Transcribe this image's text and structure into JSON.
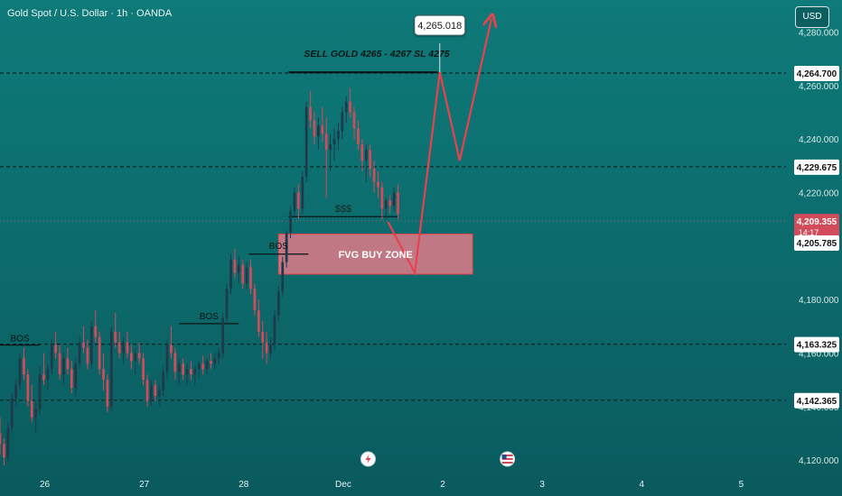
{
  "header": {
    "symbol_title": "Gold Spot / U.S. Dollar · 1h · OANDA",
    "currency": "USD"
  },
  "colors": {
    "bull": "#1e3a4a",
    "bear": "#d24b5a",
    "arrow": "#e8424d",
    "zone_fill": "#e07a88",
    "zone_border": "#e8424d",
    "level_line": "#0a1a1a",
    "background": "#0c6a6b"
  },
  "price_labels": {
    "level_1": "4,264.700",
    "level_2": "4,229.675",
    "current": "4,209.355",
    "countdown": "14:17",
    "level_3": "4,205.785",
    "level_4": "4,163.325",
    "level_5": "4,142.365"
  },
  "annotations": {
    "sell_text": "SELL GOLD 4265 - 4267 SL 4275",
    "target_text": "4,265.018",
    "liquidity_text": "$$$",
    "zone_text": "FVG BUY ZONE",
    "bos_1": "BOS",
    "bos_2": "BOS",
    "bos_3": "BOS"
  },
  "chart_data": {
    "type": "candlestick",
    "title": "Gold Spot / U.S. Dollar · 1h · OANDA",
    "y_axis": {
      "ticks": [
        4120,
        4140,
        4160,
        4180,
        4200,
        4220,
        4240,
        4260,
        4280
      ],
      "tick_labels": [
        "4,120.000",
        "4,140.000",
        "4,160.000",
        "4,180.000",
        "4,200.000",
        "4,220.000",
        "4,240.000",
        "4,260.000",
        "4,280.000"
      ],
      "range": [
        4116,
        4292
      ]
    },
    "x_axis": {
      "ticks": [
        0,
        1,
        2,
        3,
        4,
        5,
        6,
        7
      ],
      "tick_labels": [
        "26",
        "27",
        "28",
        "Dec",
        "2",
        "3",
        "4",
        "5"
      ],
      "range": [
        -0.45,
        7.45
      ],
      "unit": "day index"
    },
    "grid": false,
    "candles": [
      [
        -0.45,
        4130,
        4136,
        4122,
        4126
      ],
      [
        -0.41,
        4126,
        4128,
        4118,
        4121
      ],
      [
        -0.37,
        4121,
        4134,
        4119,
        4132
      ],
      [
        -0.33,
        4132,
        4145,
        4130,
        4143
      ],
      [
        -0.29,
        4143,
        4150,
        4140,
        4148
      ],
      [
        -0.25,
        4148,
        4160,
        4146,
        4158
      ],
      [
        -0.21,
        4158,
        4162,
        4150,
        4152
      ],
      [
        -0.17,
        4152,
        4154,
        4140,
        4142
      ],
      [
        -0.13,
        4142,
        4148,
        4134,
        4136
      ],
      [
        -0.09,
        4136,
        4142,
        4130,
        4139
      ],
      [
        -0.05,
        4139,
        4155,
        4137,
        4152
      ],
      [
        -0.01,
        4152,
        4160,
        4148,
        4150
      ],
      [
        0.03,
        4150,
        4156,
        4146,
        4154
      ],
      [
        0.07,
        4154,
        4165,
        4152,
        4163
      ],
      [
        0.11,
        4163,
        4168,
        4158,
        4160
      ],
      [
        0.15,
        4160,
        4163,
        4150,
        4152
      ],
      [
        0.19,
        4152,
        4160,
        4148,
        4158
      ],
      [
        0.23,
        4158,
        4162,
        4152,
        4154
      ],
      [
        0.27,
        4154,
        4157,
        4145,
        4147
      ],
      [
        0.31,
        4147,
        4158,
        4144,
        4156
      ],
      [
        0.35,
        4156,
        4166,
        4154,
        4164
      ],
      [
        0.39,
        4164,
        4170,
        4160,
        4162
      ],
      [
        0.43,
        4162,
        4165,
        4154,
        4156
      ],
      [
        0.47,
        4156,
        4172,
        4154,
        4170
      ],
      [
        0.51,
        4170,
        4176,
        4164,
        4166
      ],
      [
        0.55,
        4166,
        4168,
        4152,
        4154
      ],
      [
        0.59,
        4154,
        4160,
        4146,
        4150
      ],
      [
        0.63,
        4150,
        4152,
        4138,
        4140
      ],
      [
        0.67,
        4140,
        4170,
        4138,
        4168
      ],
      [
        0.71,
        4168,
        4175,
        4162,
        4164
      ],
      [
        0.75,
        4164,
        4168,
        4158,
        4160
      ],
      [
        0.79,
        4160,
        4166,
        4156,
        4164
      ],
      [
        0.83,
        4164,
        4168,
        4158,
        4160
      ],
      [
        0.87,
        4160,
        4163,
        4154,
        4157
      ],
      [
        0.91,
        4157,
        4162,
        4152,
        4160
      ],
      [
        0.95,
        4160,
        4164,
        4156,
        4158
      ],
      [
        0.99,
        4158,
        4160,
        4148,
        4150
      ],
      [
        1.03,
        4150,
        4152,
        4140,
        4142
      ],
      [
        1.07,
        4142,
        4150,
        4140,
        4148
      ],
      [
        1.11,
        4148,
        4150,
        4142,
        4144
      ],
      [
        1.15,
        4144,
        4148,
        4140,
        4146
      ],
      [
        1.19,
        4146,
        4155,
        4144,
        4153
      ],
      [
        1.23,
        4153,
        4165,
        4150,
        4163
      ],
      [
        1.27,
        4163,
        4170,
        4158,
        4160
      ],
      [
        1.31,
        4160,
        4162,
        4150,
        4153
      ],
      [
        1.35,
        4153,
        4158,
        4148,
        4156
      ],
      [
        1.39,
        4156,
        4158,
        4150,
        4152
      ],
      [
        1.43,
        4152,
        4156,
        4148,
        4154
      ],
      [
        1.47,
        4154,
        4157,
        4150,
        4152
      ],
      [
        1.51,
        4152,
        4155,
        4148,
        4154
      ],
      [
        1.55,
        4154,
        4157,
        4151,
        4156
      ],
      [
        1.59,
        4156,
        4159,
        4152,
        4154
      ],
      [
        1.63,
        4154,
        4158,
        4152,
        4157
      ],
      [
        1.67,
        4157,
        4160,
        4154,
        4156
      ],
      [
        1.71,
        4156,
        4160,
        4154,
        4158
      ],
      [
        1.75,
        4158,
        4162,
        4156,
        4160
      ],
      [
        1.79,
        4160,
        4175,
        4158,
        4173
      ],
      [
        1.83,
        4173,
        4186,
        4171,
        4184
      ],
      [
        1.87,
        4184,
        4197,
        4182,
        4195
      ],
      [
        1.91,
        4195,
        4199,
        4188,
        4190
      ],
      [
        1.95,
        4190,
        4196,
        4186,
        4193
      ],
      [
        1.99,
        4193,
        4195,
        4184,
        4186
      ],
      [
        2.03,
        4186,
        4194,
        4184,
        4192
      ],
      [
        2.07,
        4192,
        4195,
        4182,
        4184
      ],
      [
        2.11,
        4184,
        4186,
        4174,
        4176
      ],
      [
        2.15,
        4176,
        4180,
        4166,
        4168
      ],
      [
        2.19,
        4168,
        4172,
        4158,
        4164
      ],
      [
        2.23,
        4164,
        4168,
        4156,
        4160
      ],
      [
        2.27,
        4160,
        4166,
        4158,
        4163
      ],
      [
        2.31,
        4163,
        4176,
        4161,
        4174
      ],
      [
        2.35,
        4174,
        4185,
        4172,
        4183
      ],
      [
        2.39,
        4183,
        4196,
        4181,
        4194
      ],
      [
        2.43,
        4194,
        4206,
        4192,
        4205
      ],
      [
        2.47,
        4205,
        4215,
        4203,
        4213
      ],
      [
        2.51,
        4213,
        4222,
        4211,
        4220
      ],
      [
        2.55,
        4220,
        4223,
        4210,
        4214
      ],
      [
        2.59,
        4214,
        4228,
        4212,
        4226
      ],
      [
        2.63,
        4226,
        4254,
        4224,
        4252
      ],
      [
        2.67,
        4252,
        4258,
        4244,
        4247
      ],
      [
        2.71,
        4247,
        4250,
        4238,
        4241
      ],
      [
        2.75,
        4241,
        4248,
        4236,
        4245
      ],
      [
        2.79,
        4245,
        4252,
        4239,
        4242
      ],
      [
        2.83,
        4242,
        4248,
        4218,
        4236
      ],
      [
        2.87,
        4236,
        4242,
        4228,
        4238
      ],
      [
        2.91,
        4238,
        4244,
        4232,
        4240
      ],
      [
        2.95,
        4240,
        4246,
        4236,
        4243
      ],
      [
        2.99,
        4243,
        4252,
        4240,
        4250
      ],
      [
        3.03,
        4250,
        4256,
        4246,
        4254
      ],
      [
        3.07,
        4254,
        4259,
        4248,
        4250
      ],
      [
        3.11,
        4250,
        4252,
        4240,
        4244
      ],
      [
        3.15,
        4244,
        4247,
        4236,
        4238
      ],
      [
        3.19,
        4238,
        4240,
        4228,
        4232
      ],
      [
        3.23,
        4232,
        4238,
        4224,
        4236
      ],
      [
        3.27,
        4236,
        4238,
        4226,
        4229
      ],
      [
        3.31,
        4229,
        4232,
        4220,
        4224
      ],
      [
        3.35,
        4224,
        4228,
        4218,
        4222
      ],
      [
        3.39,
        4222,
        4224,
        4210,
        4214
      ],
      [
        3.43,
        4214,
        4218,
        4210,
        4217
      ],
      [
        3.47,
        4217,
        4219,
        4212,
        4215
      ],
      [
        3.51,
        4215,
        4222,
        4213,
        4220
      ],
      [
        3.55,
        4220,
        4223,
        4210,
        4212
      ]
    ],
    "levels": [
      {
        "value": 4264.7,
        "style": "dashed"
      },
      {
        "value": 4229.675,
        "style": "dashed"
      },
      {
        "value": 4209.355,
        "style": "dotted-red"
      },
      {
        "value": 4163.325,
        "style": "dashed"
      },
      {
        "value": 4142.365,
        "style": "dashed"
      }
    ],
    "sell_zone_line": {
      "x": [
        2.45,
        3.95
      ],
      "y": 4265
    },
    "liquidity_line": {
      "x": [
        2.45,
        3.55
      ],
      "y": 4211
    },
    "bos_lines": [
      {
        "x": [
          -0.45,
          -0.05
        ],
        "y": 4163
      },
      {
        "x": [
          1.35,
          1.95
        ],
        "y": 4171
      },
      {
        "x": [
          2.05,
          2.65
        ],
        "y": 4197
      }
    ],
    "zone": {
      "x": [
        2.35,
        4.3
      ],
      "y": [
        4189.5,
        4204.5
      ]
    },
    "projection": [
      [
        3.45,
        4209
      ],
      [
        3.72,
        4190
      ],
      [
        3.97,
        4265
      ],
      [
        4.17,
        4232
      ],
      [
        4.49,
        4285
      ]
    ],
    "target_point": {
      "x": 3.97,
      "y": 4265
    }
  }
}
